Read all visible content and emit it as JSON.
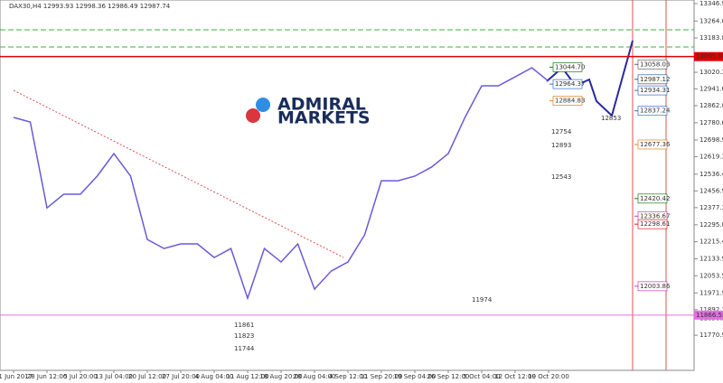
{
  "chart_data": {
    "type": "line",
    "subtitle": "DAX30,H4 12993.93 12998.36 12986.49 12987.74",
    "logo": [
      "ADMIRAL",
      "MARKETS"
    ],
    "categories": [
      "21 Jun 2017",
      null,
      "28 Jun 12:00",
      null,
      "5 Jul 20:00",
      null,
      "13 Jul 04:00",
      null,
      "20 Jul 12:00",
      null,
      "27 Jul 20:00",
      null,
      "4 Aug 04:00",
      null,
      "11 Aug 12:00",
      null,
      "18 Aug 20:00",
      null,
      "28 Aug 04:00",
      null,
      "4 Sep 12:00",
      null,
      "11 Sep 20:00",
      null,
      "19 Sep 04:00",
      null,
      "26 Sep 12:00",
      null,
      "5 Oct 04:00",
      null,
      "12 Oct 12:00",
      null,
      "19 Oct 20:00"
    ],
    "values": [
      12806,
      12784,
      12376,
      12441,
      12441,
      12527,
      12634,
      12527,
      12226,
      12183,
      12205,
      12205,
      12140,
      12183,
      11947,
      12183,
      12119,
      12205,
      11990,
      12076,
      12119,
      12248,
      12505,
      12505,
      12527,
      12570,
      12634,
      12806,
      12956,
      12956,
      12999,
      13042,
      12978
    ],
    "color": "#6a5ad8",
    "ylim": [
      11604,
      13364
    ],
    "yticks": [
      {
        "value": 13346.9,
        "label": "13346.90"
      },
      {
        "value": 13264.0,
        "label": "13264.00"
      },
      {
        "value": 13183.8,
        "label": "13183.80"
      },
      {
        "value": 13102.4,
        "label": "13102.40"
      },
      {
        "value": 13020.3,
        "label": "13020.30"
      },
      {
        "value": 12941.6,
        "label": "12941.60"
      },
      {
        "value": 12862.0,
        "label": "12862.00"
      },
      {
        "value": 12780.6,
        "label": "12780.60"
      },
      {
        "value": 12698.9,
        "label": "12698.90"
      },
      {
        "value": 12619.3,
        "label": "12619.30"
      },
      {
        "value": 12536.4,
        "label": "12536.40"
      },
      {
        "value": 12456.9,
        "label": "12456.90"
      },
      {
        "value": 12377.3,
        "label": "12377.30"
      },
      {
        "value": 12295.8,
        "label": "12295.80"
      },
      {
        "value": 12215.4,
        "label": "12215.40"
      },
      {
        "value": 12133.9,
        "label": "12133.90"
      },
      {
        "value": 12053.5,
        "label": "12053.50"
      },
      {
        "value": 11971.9,
        "label": "11971.90"
      },
      {
        "value": 11892.3,
        "label": "11892.30"
      },
      {
        "value": 11850.5,
        "label": "11850.50"
      },
      {
        "value": 11770.9,
        "label": "11770.90"
      }
    ],
    "levels": [
      {
        "value": 13095,
        "label": "13095.00",
        "color": "#e00000"
      },
      {
        "value": 11866.55,
        "label": "11866.55",
        "color": "#e070e0"
      }
    ],
    "boxes": [
      {
        "value": 13044.7,
        "label": "13044.70",
        "color": "#1a7a1a"
      },
      {
        "value": 12964.37,
        "label": "12964.37",
        "color": "#3070c0"
      },
      {
        "value": 12884.83,
        "label": "12884.83",
        "color": "#e08020"
      },
      {
        "value": 13058.03,
        "label": "13058.03",
        "color": "#606060"
      },
      {
        "value": 12987.12,
        "label": "12987.12",
        "color": "#3060a0"
      },
      {
        "value": 12934.31,
        "label": "12934.31",
        "color": "#3070c0"
      },
      {
        "value": 12837.24,
        "label": "12837.24",
        "color": "#3070c0"
      },
      {
        "value": 12677.36,
        "label": "12677.36",
        "color": "#e08020"
      },
      {
        "value": 12420.42,
        "label": "12420.42",
        "color": "#1a7a1a"
      },
      {
        "value": 12336.67,
        "label": "12336.67",
        "color": "#c040c0"
      },
      {
        "value": 12298.61,
        "label": "12298.61",
        "color": "#e02020"
      },
      {
        "value": 12003.86,
        "label": "12003.86",
        "color": "#c040c0"
      }
    ],
    "notes": [
      {
        "label": "11861",
        "color": "#1a7a1a"
      },
      {
        "label": "11823",
        "color": "#c020c0"
      },
      {
        "label": "11744",
        "color": "#e09020"
      },
      {
        "label": "12754",
        "color": "#1a7a1a"
      },
      {
        "label": "12893",
        "color": "#e02020"
      },
      {
        "label": "12543",
        "color": "#c040c0"
      },
      {
        "label": "11974",
        "color": "#c040c0"
      },
      {
        "label": "12853",
        "color": "#20c0e0"
      }
    ],
    "grid": false
  }
}
